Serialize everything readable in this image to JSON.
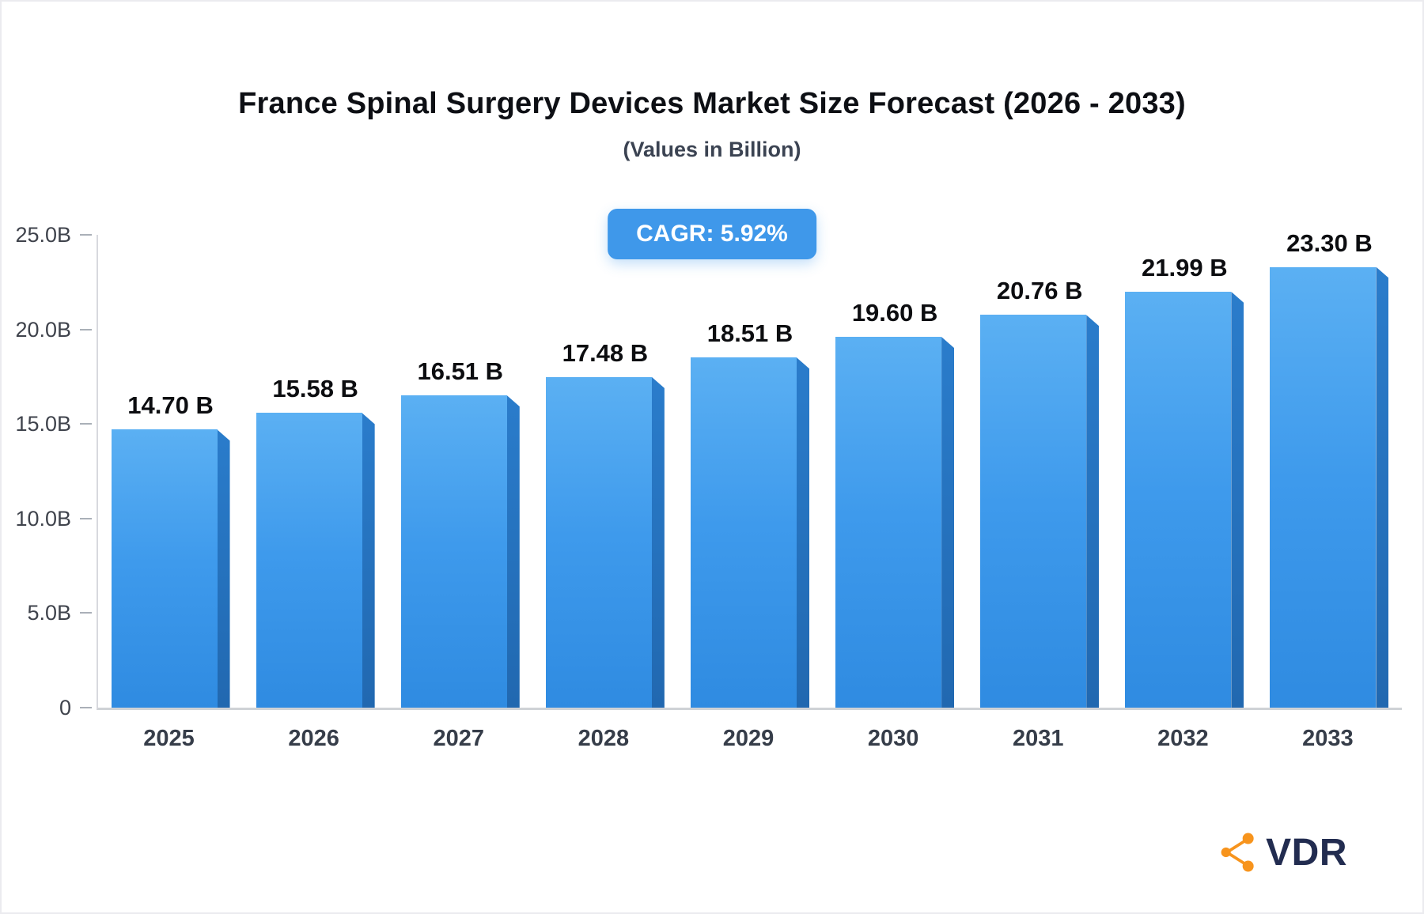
{
  "title": "France Spinal Surgery Devices Market Size Forecast (2026 - 2033)",
  "subtitle": "(Values in Billion)",
  "badge": {
    "label": "CAGR: 5.92%"
  },
  "chart_data": {
    "type": "bar",
    "title": "France Spinal Surgery Devices Market Size Forecast (2026 - 2033)",
    "subtitle": "(Values in Billion)",
    "xlabel": "",
    "ylabel": "",
    "categories": [
      "2025",
      "2026",
      "2027",
      "2028",
      "2029",
      "2030",
      "2031",
      "2032",
      "2033"
    ],
    "values": [
      14.7,
      15.58,
      16.51,
      17.48,
      18.51,
      19.6,
      20.76,
      21.99,
      23.3
    ],
    "value_labels": [
      "14.70 B",
      "15.58 B",
      "16.51 B",
      "17.48 B",
      "18.51 B",
      "19.60 B",
      "20.76 B",
      "21.99 B",
      "23.30 B"
    ],
    "ylim": [
      0,
      25
    ],
    "yticks": [
      {
        "value": 0,
        "label": "0"
      },
      {
        "value": 5,
        "label": "5.0B"
      },
      {
        "value": 10,
        "label": "10.0B"
      },
      {
        "value": 15,
        "label": "15.0B"
      },
      {
        "value": 20,
        "label": "20.0B"
      },
      {
        "value": 25,
        "label": "25.0B"
      }
    ],
    "grid": false,
    "legend": false,
    "cagr": "CAGR: 5.92%",
    "bar_color_top": "#5BB0F3",
    "bar_color_bottom": "#2F8BE1",
    "bar_side_color": "#2573C0",
    "badge_color": "#3F98EA"
  },
  "logo": {
    "text": "VDR",
    "icon": "network-nodes-icon",
    "icon_color": "#F7941D",
    "text_color": "#222C50"
  }
}
